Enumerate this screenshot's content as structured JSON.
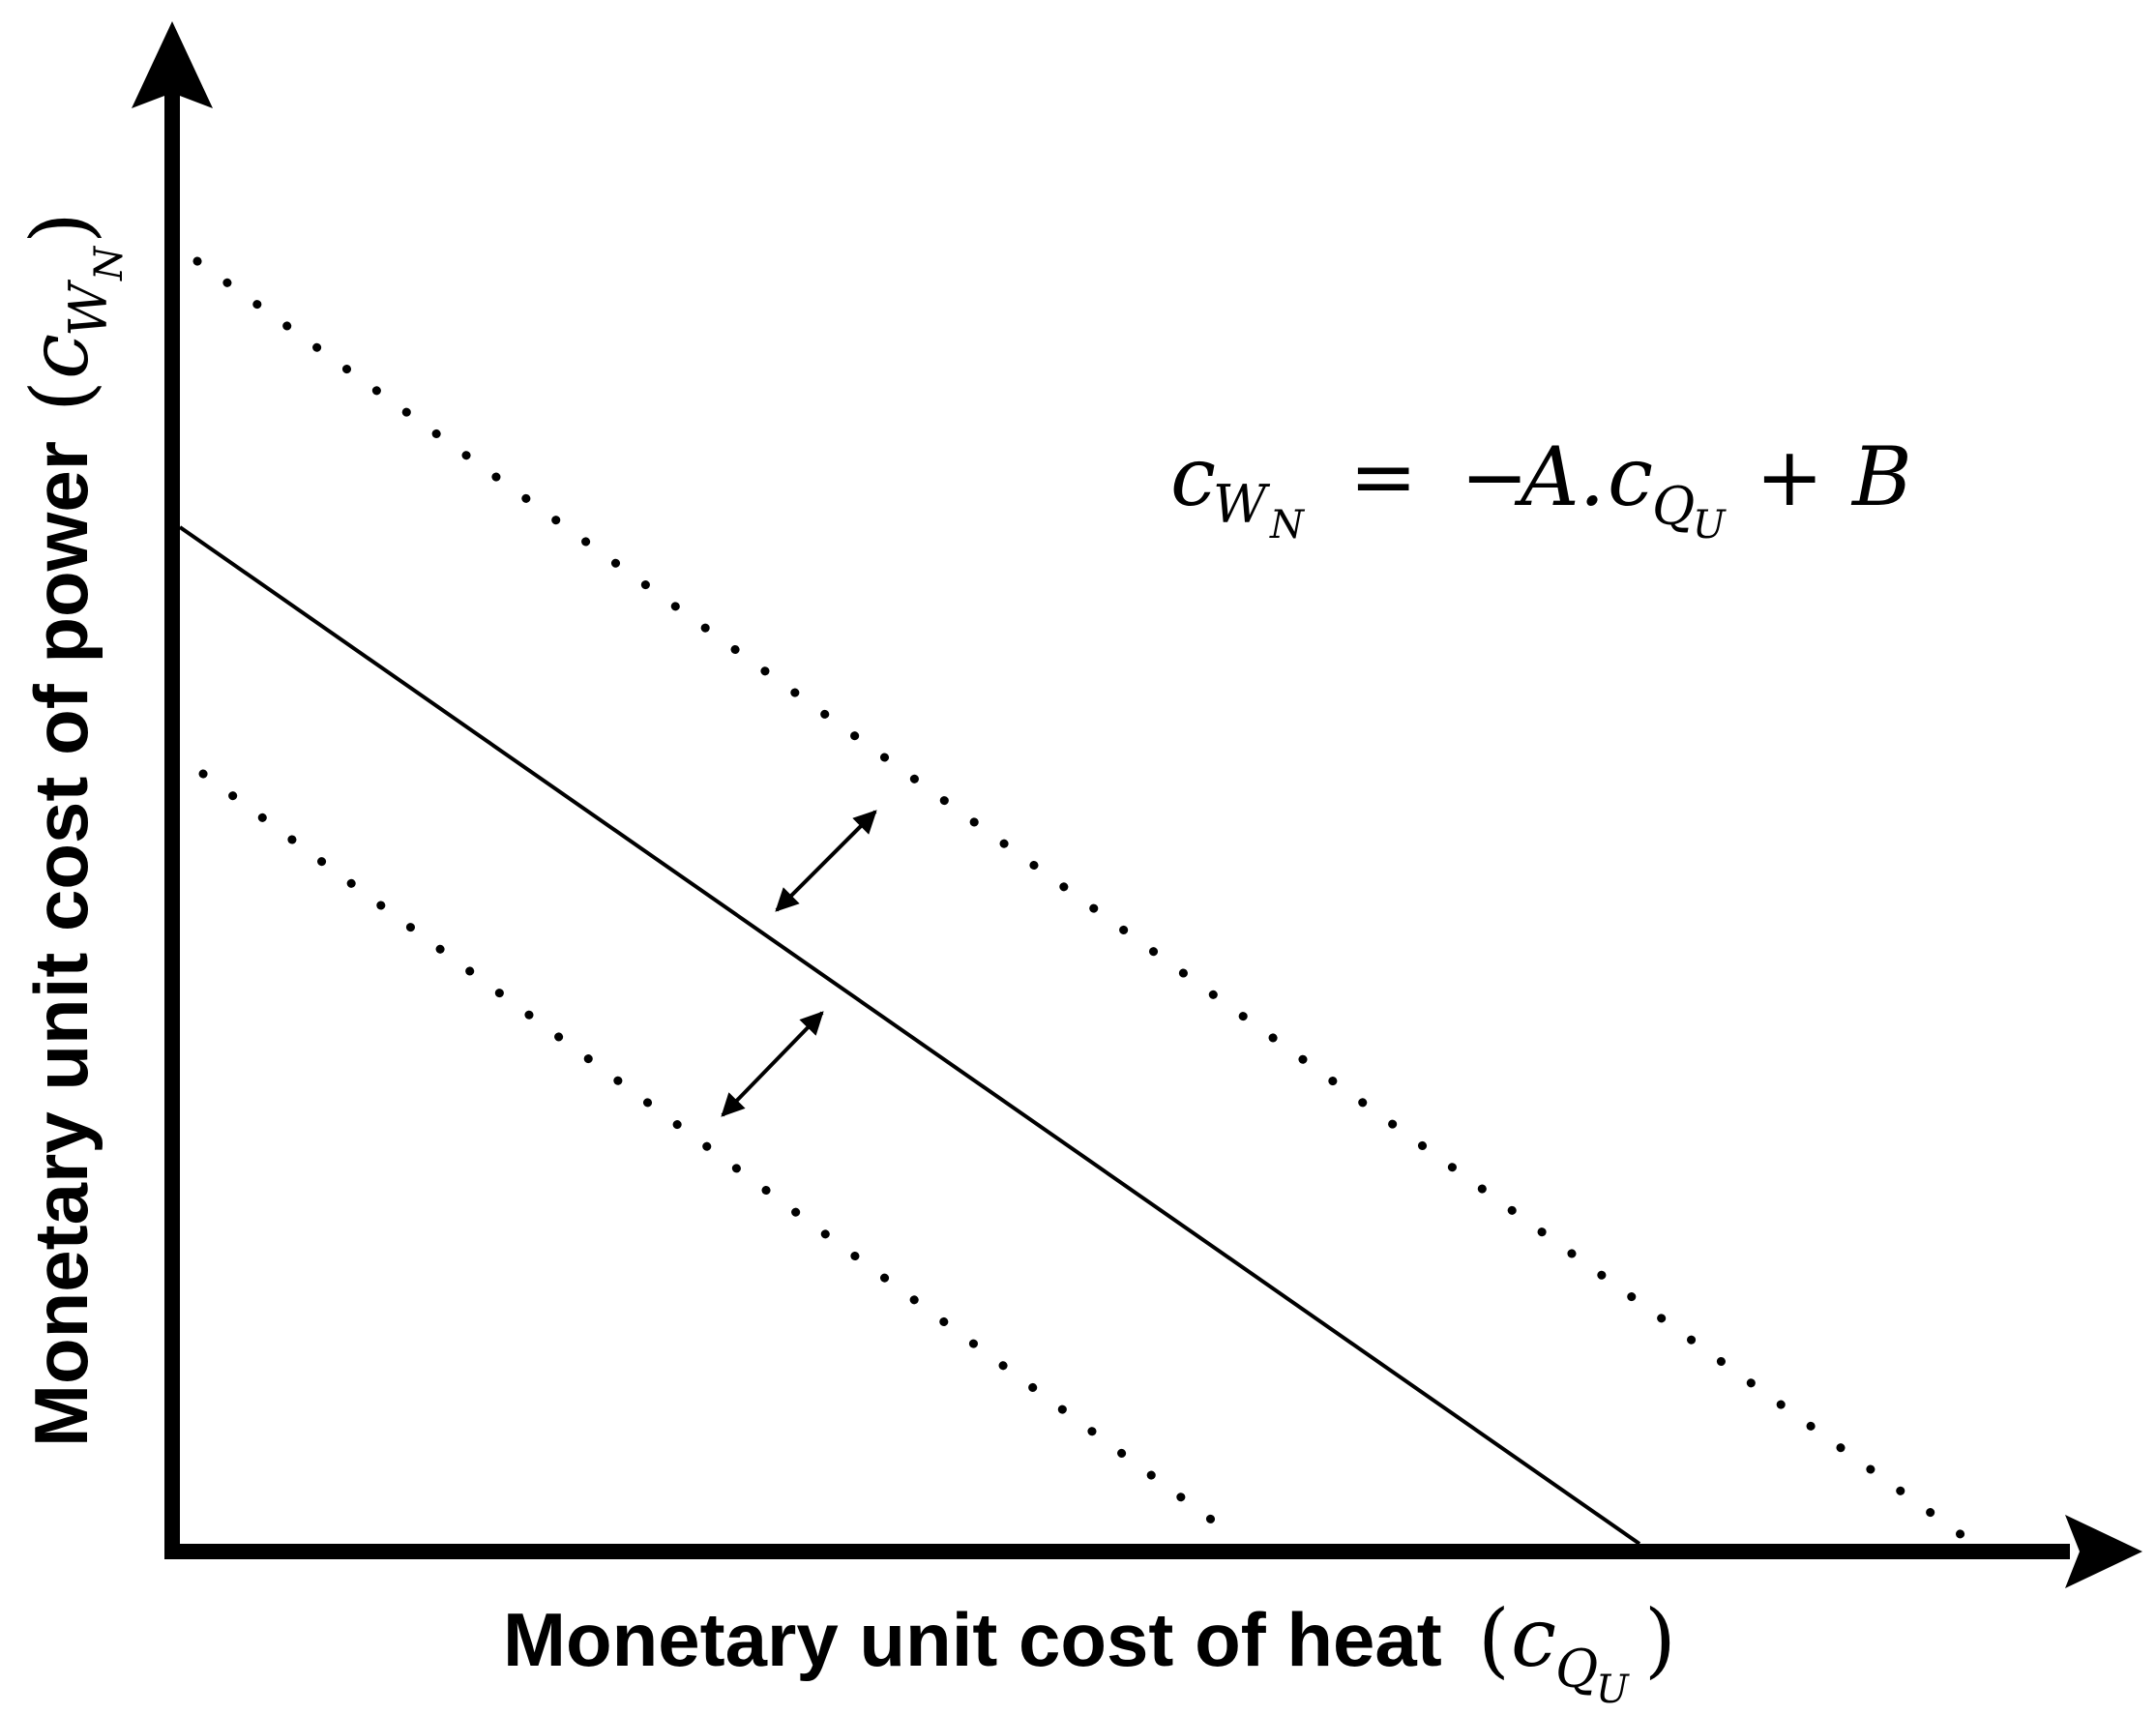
{
  "axes": {
    "x_label": "Monetary unit cost of heat",
    "x_symbol": "c",
    "x_subscript": "Q",
    "x_subsubscript": "U",
    "y_label": "Monetary unit cost of power",
    "y_symbol": "c",
    "y_subscript": "W",
    "y_subsubscript": "N",
    "open_paren": "(",
    "close_paren": ")"
  },
  "equation": {
    "lhs_symbol": "c",
    "lhs_subscript": "W",
    "lhs_subsubscript": "N",
    "equals": "=",
    "minus": "−",
    "coefficient": "A.",
    "rhs_symbol": "c",
    "rhs_subscript": "Q",
    "rhs_subsubscript": "U",
    "plus": "+",
    "intercept": "B"
  },
  "lines": [
    {
      "name": "baseline",
      "style": "solid"
    },
    {
      "name": "upper-shift",
      "style": "dotted"
    },
    {
      "name": "lower-shift",
      "style": "dotted"
    }
  ],
  "colors": {
    "ink": "#000000",
    "background": "#ffffff"
  }
}
